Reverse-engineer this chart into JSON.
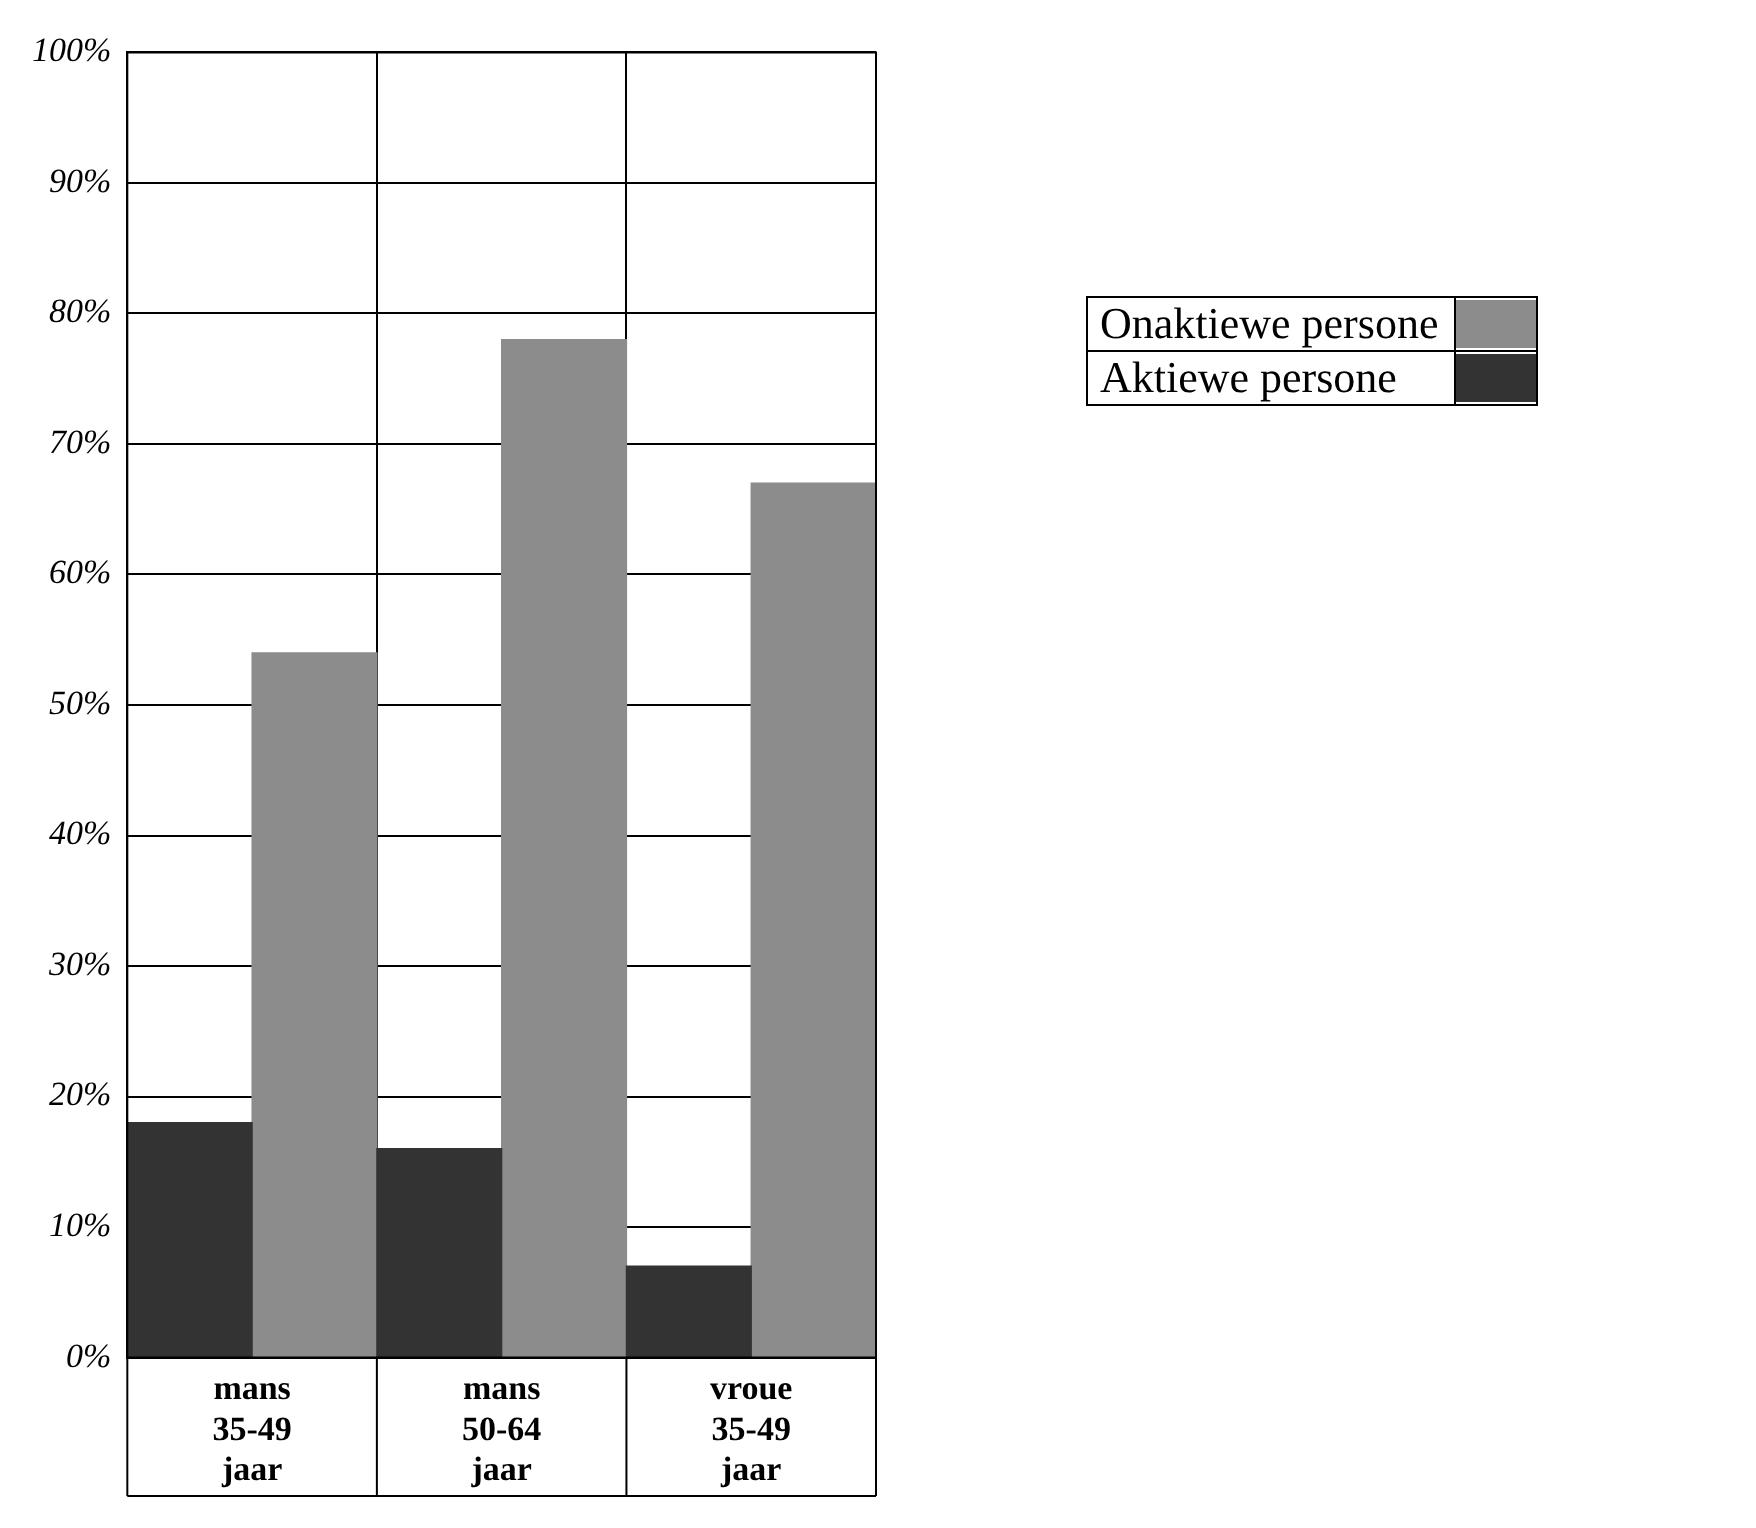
{
  "chart_data": {
    "type": "bar",
    "categories": [
      "mans 35-49 jaar",
      "mans 50-64 jaar",
      "vroue 35-49 jaar"
    ],
    "series": [
      {
        "name": "Aktiewe persone",
        "color": "#333333",
        "values": [
          18,
          16,
          7
        ]
      },
      {
        "name": "Onaktiewe persone",
        "color": "#8c8c8c",
        "values": [
          54,
          78,
          67
        ]
      }
    ],
    "ylim": [
      0,
      100
    ],
    "yticks": [
      {
        "value": 0,
        "label": "0%"
      },
      {
        "value": 10,
        "label": "10%"
      },
      {
        "value": 20,
        "label": "20%"
      },
      {
        "value": 30,
        "label": "30%"
      },
      {
        "value": 40,
        "label": "40%"
      },
      {
        "value": 50,
        "label": "50%"
      },
      {
        "value": 60,
        "label": "60%"
      },
      {
        "value": 70,
        "label": "70%"
      },
      {
        "value": 80,
        "label": "80%"
      },
      {
        "value": 90,
        "label": "90%"
      },
      {
        "value": 100,
        "label": "100%"
      }
    ],
    "grid": true,
    "legend": "right"
  }
}
